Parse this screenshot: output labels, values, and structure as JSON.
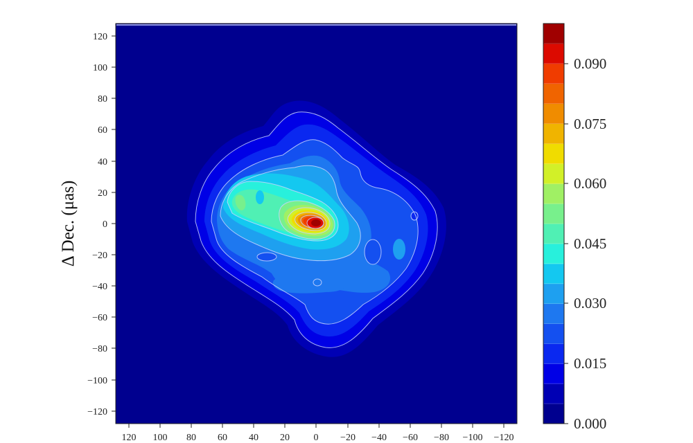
{
  "chart_data": {
    "type": "heatmap",
    "subtype": "filled-contour",
    "title": "",
    "xlabel": "",
    "ylabel": "Δ Dec.  (μas)",
    "xlim": [
      130,
      -130
    ],
    "ylim": [
      -130,
      130
    ],
    "x_ticks": [
      120,
      100,
      80,
      60,
      40,
      20,
      0,
      -20,
      -40,
      -60,
      -80,
      -100,
      -120
    ],
    "x_tick_labels": [
      "120",
      "100",
      "80",
      "60",
      "40",
      "20",
      "0",
      "−20",
      "−40",
      "−60",
      "−80",
      "−100",
      "−120"
    ],
    "y_ticks": [
      120,
      100,
      80,
      60,
      40,
      20,
      0,
      -20,
      -40,
      -60,
      -80,
      -100,
      -120
    ],
    "y_tick_labels": [
      "120",
      "100",
      "80",
      "60",
      "40",
      "20",
      "0",
      "−20",
      "−40",
      "−60",
      "−80",
      "−100",
      "−120"
    ],
    "grid": false,
    "colormap": "jet",
    "colorbar": {
      "min": 0.0,
      "max": 0.1,
      "levels": 20,
      "step": 0.005,
      "ticks": [
        0.0,
        0.015,
        0.03,
        0.045,
        0.06,
        0.075,
        0.09
      ],
      "tick_labels": [
        "0.000",
        "0.015",
        "0.030",
        "0.045",
        "0.060",
        "0.075",
        "0.090"
      ],
      "band_colors": [
        "#00008f",
        "#0000b4",
        "#0000e6",
        "#0a28f0",
        "#1450f0",
        "#1e78f0",
        "#1ea0f0",
        "#14c8f0",
        "#28f0dc",
        "#50f0b4",
        "#78f08c",
        "#a0f064",
        "#d2f028",
        "#f0dc00",
        "#f0b400",
        "#f08c00",
        "#f06400",
        "#f03c00",
        "#dc0a00",
        "#a00000"
      ]
    },
    "features": {
      "peak": {
        "x": 0,
        "y": 0,
        "value": 0.1
      },
      "extended_emission": "Elongated structure from about (+80, +40) to (-80, -40) with secondary lobe near (+50, +20) at ~0.05 level",
      "outer_contour_extent": {
        "x": [
          85,
          -90
        ],
        "y": [
          -85,
          80
        ]
      }
    }
  },
  "colors": {
    "background": "#00008f",
    "contour_line": "#c8d4ff"
  }
}
